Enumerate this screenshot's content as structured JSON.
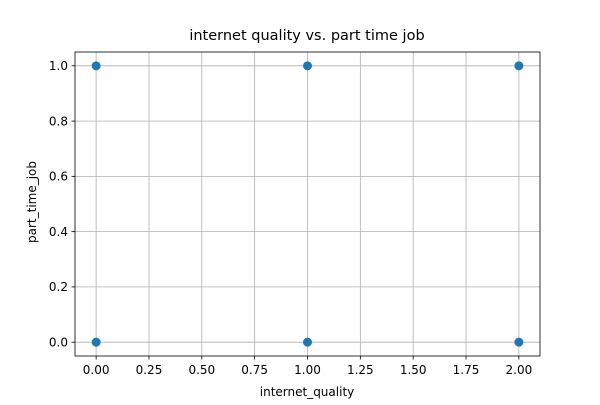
{
  "chart_data": {
    "type": "scatter",
    "title": "internet quality vs. part time job",
    "xlabel": "internet_quality",
    "ylabel": "part_time_job",
    "xlim": [
      -0.1,
      2.1
    ],
    "ylim": [
      -0.05,
      1.05
    ],
    "x_ticks": [
      "0.00",
      "0.25",
      "0.50",
      "0.75",
      "1.00",
      "1.25",
      "1.50",
      "1.75",
      "2.00"
    ],
    "y_ticks": [
      "0.0",
      "0.2",
      "0.4",
      "0.6",
      "0.8",
      "1.0"
    ],
    "grid": true,
    "legend": "none",
    "marker_color": "#1f77b4",
    "points": [
      {
        "x": 0,
        "y": 1
      },
      {
        "x": 1,
        "y": 1
      },
      {
        "x": 2,
        "y": 1
      },
      {
        "x": 0,
        "y": 0
      },
      {
        "x": 1,
        "y": 0
      },
      {
        "x": 2,
        "y": 0
      }
    ]
  }
}
